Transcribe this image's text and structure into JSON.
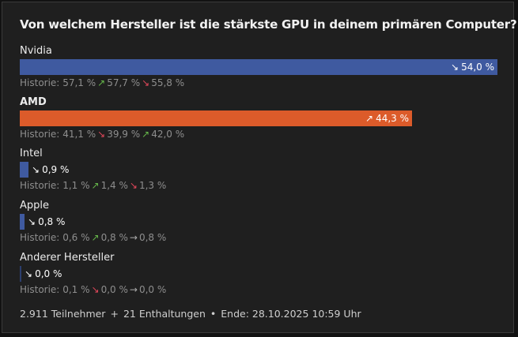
{
  "question": "Von welchem Hersteller ist die stärkste GPU in deinem primären Computer?",
  "colors": {
    "blue": "#3f5aa0",
    "orange": "#dc5b2a",
    "dark_blue": "#2c3e6e"
  },
  "options": [
    {
      "label": "Nvidia",
      "percent_text": "54,0 %",
      "fraction": 0.54,
      "trend": "down",
      "history_label": "Historie:",
      "history": [
        "57,1 %",
        "57,7 %",
        "55,8 %"
      ],
      "history_trends": [
        "up",
        "down"
      ]
    },
    {
      "label": "AMD",
      "percent_text": "44,3 %",
      "fraction": 0.443,
      "trend": "up",
      "history_label": "Historie:",
      "history": [
        "41,1 %",
        "39,9 %",
        "42,0 %"
      ],
      "history_trends": [
        "down",
        "up"
      ]
    },
    {
      "label": "Intel",
      "percent_text": "0,9 %",
      "fraction": 0.009,
      "trend": "down",
      "history_label": "Historie:",
      "history": [
        "1,1 %",
        "1,4 %",
        "1,3 %"
      ],
      "history_trends": [
        "up",
        "down"
      ]
    },
    {
      "label": "Apple",
      "percent_text": "0,8 %",
      "fraction": 0.008,
      "trend": "down",
      "history_label": "Historie:",
      "history": [
        "0,6 %",
        "0,8 %",
        "0,8 %"
      ],
      "history_trends": [
        "up",
        "flat"
      ]
    },
    {
      "label": "Anderer Hersteller",
      "percent_text": "0,0 %",
      "fraction": 0.0,
      "trend": "down",
      "history_label": "Historie:",
      "history": [
        "0,1 %",
        "0,0 %",
        "0,0 %"
      ],
      "history_trends": [
        "down",
        "flat"
      ]
    }
  ],
  "footer": {
    "participants": "2.911 Teilnehmer",
    "sep1": "+",
    "abstentions": "21 Enthaltungen",
    "sep2": "•",
    "end": "Ende: 28.10.2025 10:59 Uhr"
  }
}
